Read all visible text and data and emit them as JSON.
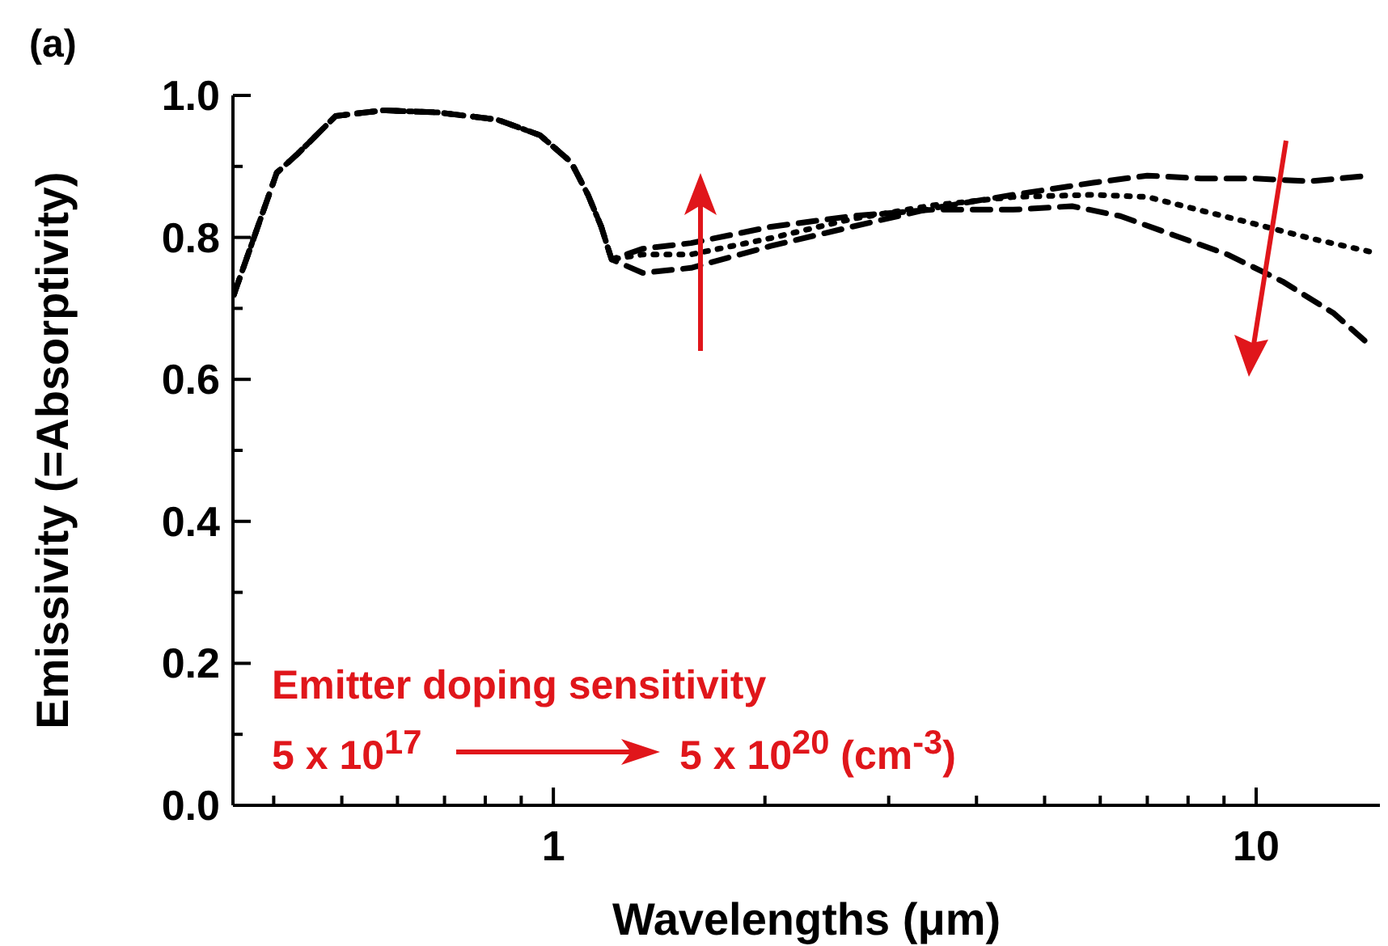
{
  "chart_data": {
    "type": "line",
    "xlabel": "Wavelengths (μm)",
    "ylabel": "Emissivity (=Absorptivity)",
    "annotations": [
      "(a)",
      "Emitter doping sensitivity",
      "5 x 10$^{17}$",
      "5 x 10$^{20}$ (cm$^{-3}$)"
    ],
    "log": "x",
    "xlim": [
      0.35,
      15
    ],
    "xticks": [
      {
        "value": 0.4,
        "label": null
      },
      {
        "value": 0.5,
        "label": null
      },
      {
        "value": 0.6,
        "label": null
      },
      {
        "value": 0.7,
        "label": null
      },
      {
        "value": 0.8,
        "label": null
      },
      {
        "value": 0.9,
        "label": null
      },
      1,
      {
        "value": 2,
        "label": null
      },
      {
        "value": 3,
        "label": null
      },
      {
        "value": 4,
        "label": null
      },
      {
        "value": 5,
        "label": null
      },
      {
        "value": 6,
        "label": null
      },
      {
        "value": 7,
        "label": null
      },
      {
        "value": 8,
        "label": null
      },
      {
        "value": 9,
        "label": null
      },
      10
    ],
    "ylim": [
      0,
      1
    ],
    "yticks": [
      {
        "value": 0,
        "label": "0.0"
      },
      {
        "value": 0.1,
        "label": null
      },
      {
        "value": 0.2,
        "label": "0.2"
      },
      {
        "value": 0.3,
        "label": null
      },
      {
        "value": 0.4,
        "label": "0.4"
      },
      {
        "value": 0.5,
        "label": null
      },
      {
        "value": 0.6,
        "label": "0.6"
      },
      {
        "value": 0.7,
        "label": null
      },
      {
        "value": 0.8,
        "label": "0.8"
      },
      {
        "value": 0.9,
        "label": null
      },
      {
        "value": 1,
        "label": "1.0"
      }
    ],
    "series": [
      {
        "color": "#000000",
        "line_style": "dashed",
        "x": [
          0.351,
          0.404,
          0.433,
          0.49,
          0.574,
          0.685,
          0.831,
          0.957,
          1.06,
          1.12,
          1.17,
          1.21,
          1.34,
          1.57,
          2.04,
          2.66,
          3.46,
          4.51,
          5.86,
          7.0,
          8.34,
          9.95,
          11.9,
          14.5
        ],
        "values": [
          0.719,
          0.891,
          0.918,
          0.971,
          0.979,
          0.976,
          0.966,
          0.944,
          0.906,
          0.86,
          0.815,
          0.769,
          0.75,
          0.757,
          0.788,
          0.815,
          0.841,
          0.86,
          0.877,
          0.887,
          0.883,
          0.883,
          0.879,
          0.887
        ]
      },
      {
        "color": "#000000",
        "line_style": "dotted",
        "x": [
          0.351,
          0.404,
          0.433,
          0.49,
          0.574,
          0.685,
          0.831,
          0.957,
          1.06,
          1.12,
          1.17,
          1.21,
          1.34,
          1.57,
          2.04,
          2.66,
          3.46,
          4.51,
          5.86,
          7.0,
          8.34,
          9.95,
          11.9,
          14.5
        ],
        "values": [
          0.719,
          0.891,
          0.918,
          0.971,
          0.979,
          0.976,
          0.966,
          0.944,
          0.906,
          0.86,
          0.815,
          0.769,
          0.776,
          0.776,
          0.799,
          0.826,
          0.845,
          0.857,
          0.86,
          0.857,
          0.838,
          0.819,
          0.799,
          0.78
        ]
      },
      {
        "color": "#000000",
        "line_style": "dashed",
        "x": [
          0.351,
          0.404,
          0.433,
          0.49,
          0.574,
          0.685,
          0.831,
          0.957,
          1.06,
          1.12,
          1.17,
          1.21,
          1.34,
          1.57,
          2.04,
          2.66,
          3.46,
          4.51,
          5.47,
          6.41,
          7.64,
          9.1,
          10.9,
          12.9,
          14.4
        ],
        "values": [
          0.719,
          0.891,
          0.918,
          0.971,
          0.979,
          0.976,
          0.966,
          0.944,
          0.906,
          0.86,
          0.815,
          0.769,
          0.784,
          0.792,
          0.815,
          0.83,
          0.839,
          0.839,
          0.844,
          0.83,
          0.803,
          0.776,
          0.738,
          0.693,
          0.651
        ]
      }
    ]
  }
}
